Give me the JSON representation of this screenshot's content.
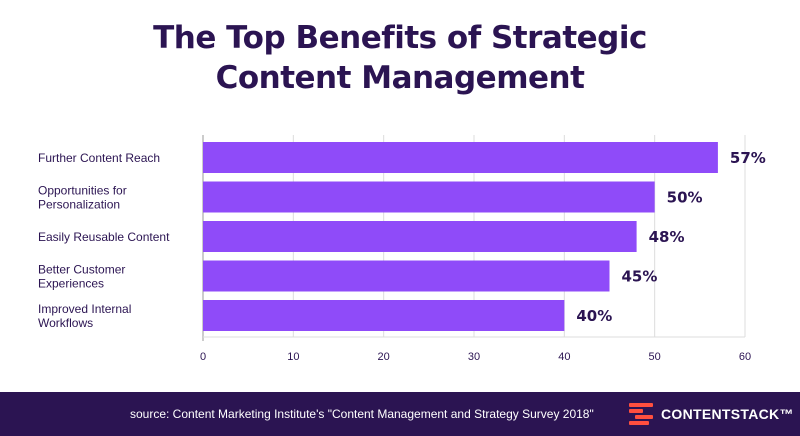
{
  "title_lines": [
    "The Top Benefits of Strategic",
    "Content Management"
  ],
  "chart_data": {
    "type": "bar",
    "orientation": "horizontal",
    "categories": [
      [
        "Further Content Reach"
      ],
      [
        "Opportunities for",
        "Personalization"
      ],
      [
        "Easily Reusable Content"
      ],
      [
        "Better Customer",
        "Experiences"
      ],
      [
        "Improved Internal",
        "Workflows"
      ]
    ],
    "values": [
      57,
      50,
      48,
      45,
      40
    ],
    "value_labels": [
      "57%",
      "50%",
      "48%",
      "45%",
      "40%"
    ],
    "xlim": [
      0,
      60
    ],
    "xticks": [
      "0",
      "10",
      "20",
      "30",
      "40",
      "50",
      "60"
    ],
    "grid": "vertical",
    "bar_color": "#8f4bf9",
    "label_color": "#2b1452"
  },
  "footer": {
    "source": "source: Content Marketing Institute's \"Content Management and Strategy Survey 2018\"",
    "brand_name": "CONTENTSTACK™",
    "brand_logo_color": "#ff4f3f",
    "background": "#2b1452"
  }
}
